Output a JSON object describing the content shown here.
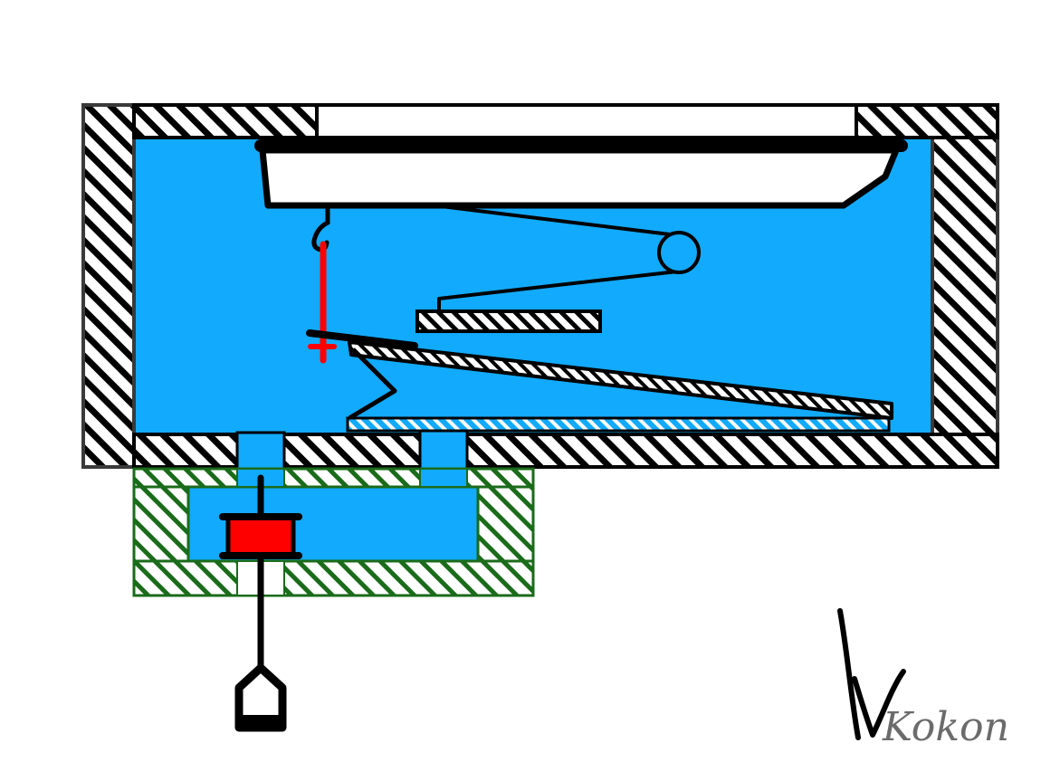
{
  "diagram": {
    "colors": {
      "background": "#ffffff",
      "water": "#12aafc",
      "outline": "#000000",
      "frame_outline": "#3a3a3a",
      "valve_body": "#1a6b1a",
      "accent": "#ff0000",
      "signature": "#6b6b6b"
    },
    "signature": {
      "text": "Kokon"
    }
  }
}
